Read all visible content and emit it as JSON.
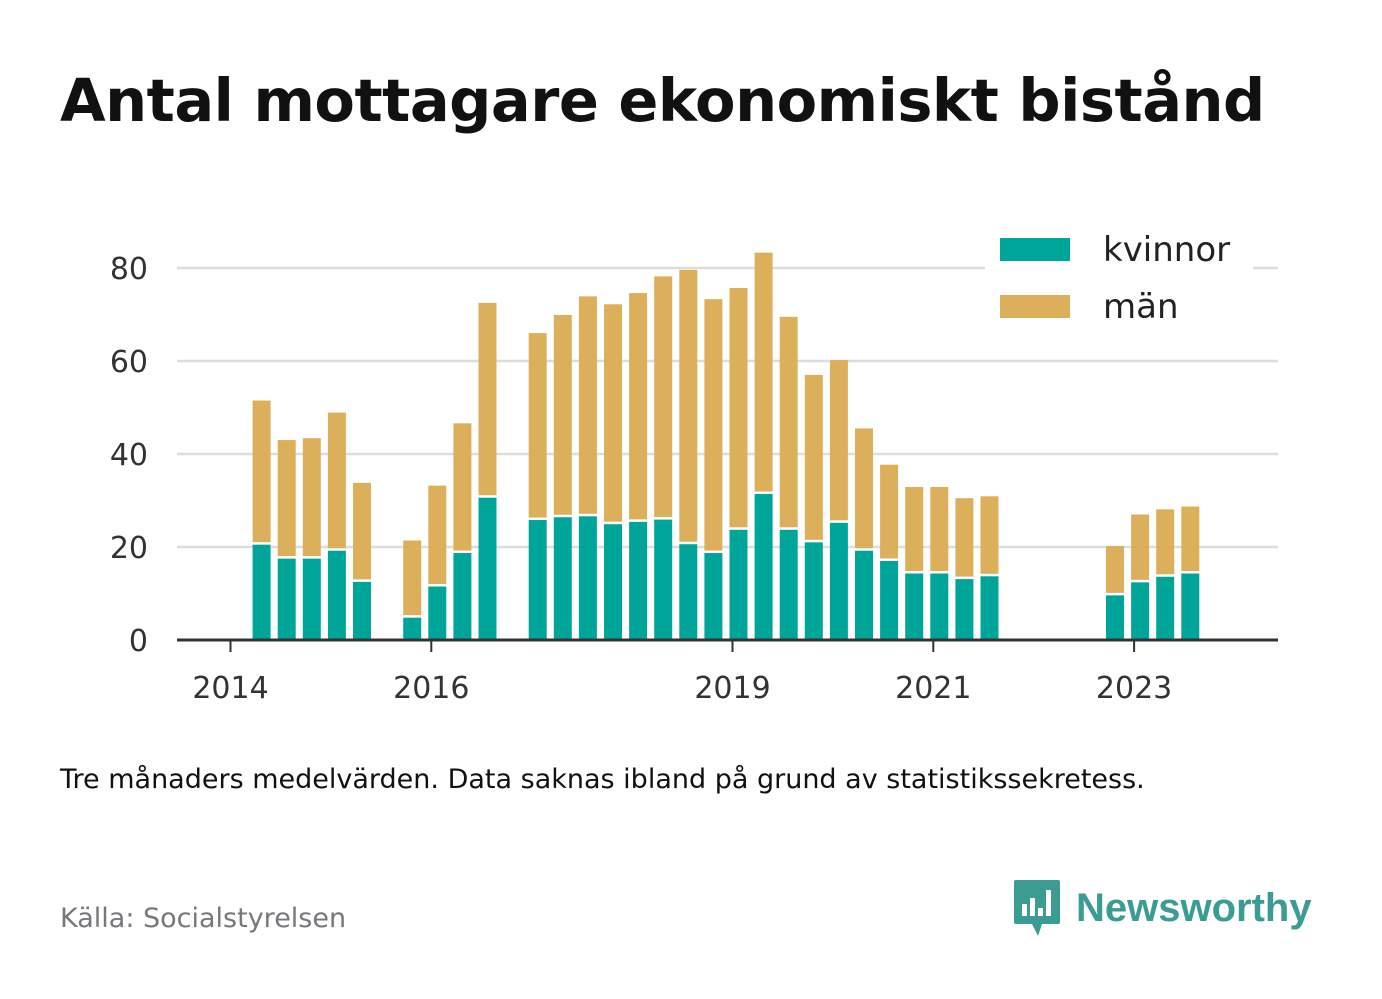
{
  "title": "Antal mottagare ekonomiskt bistånd",
  "note": "Tre månaders medelvärden. Data saknas ibland på grund av statistikssekretess.",
  "source": "Källa: Socialstyrelsen",
  "brand": {
    "name": "Newsworthy",
    "icon": "newsworthy-logo-icon"
  },
  "colors": {
    "kvinnor": "#00a59a",
    "man": "#dcb05b",
    "grid": "#dddddd",
    "axis": "#333333",
    "text": "#333333",
    "brand": "#3a9c92"
  },
  "chart_data": {
    "type": "bar",
    "stacked": true,
    "ylim": [
      0,
      90
    ],
    "yticks": [
      0,
      20,
      40,
      60,
      80
    ],
    "xticks": [
      {
        "label": "2014",
        "index": 0
      },
      {
        "label": "2016",
        "index": 8
      },
      {
        "label": "2019",
        "index": 20
      },
      {
        "label": "2021",
        "index": 28
      },
      {
        "label": "2023",
        "index": 36
      }
    ],
    "legend": {
      "position": "top-right",
      "entries": [
        "kvinnor",
        "män"
      ]
    },
    "series": [
      {
        "name": "kvinnor",
        "values": [
          null,
          20.5,
          17.5,
          17.5,
          19.2,
          12.5,
          null,
          4.8,
          11.5,
          18.7,
          30.6,
          null,
          25.8,
          26.4,
          26.6,
          24.9,
          25.4,
          25.9,
          20.6,
          18.7,
          23.7,
          31.4,
          23.7,
          21.0,
          25.2,
          19.2,
          17.0,
          14.3,
          14.3,
          13.1,
          13.7,
          null,
          null,
          null,
          null,
          9.6,
          12.4,
          13.6,
          14.3
        ]
      },
      {
        "name": "män",
        "values": [
          null,
          31.0,
          25.5,
          25.9,
          29.7,
          21.3,
          null,
          16.6,
          21.7,
          27.9,
          41.9,
          null,
          40.2,
          43.5,
          47.3,
          47.3,
          49.2,
          52.3,
          59.0,
          54.6,
          52.0,
          51.9,
          45.8,
          36.0,
          35.0,
          26.3,
          20.7,
          18.6,
          18.6,
          17.4,
          17.2,
          null,
          null,
          null,
          null,
          10.6,
          14.6,
          14.5,
          14.4
        ]
      }
    ]
  }
}
